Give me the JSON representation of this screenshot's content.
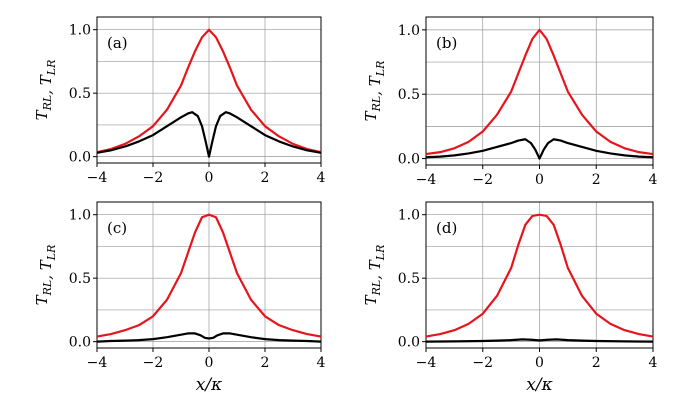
{
  "chart_data": [
    {
      "type": "line",
      "panel_label": "(a)",
      "ylabel": "T_{RL}, T_{LR}",
      "xlabel": "",
      "xlim": [
        -4,
        4
      ],
      "ylim": [
        -0.05,
        1.1
      ],
      "xticks": [
        -4,
        -2,
        0,
        2,
        4
      ],
      "xtick_labels": [
        "−4",
        "−2",
        "0",
        "2",
        "4"
      ],
      "yticks": [
        0.0,
        0.5,
        1.0
      ],
      "ytick_labels": [
        "0.0",
        "0.5",
        "1.0"
      ],
      "minor_y_grid": [
        0.25,
        0.75
      ],
      "grid": true,
      "series": [
        {
          "color": "#e8141c",
          "x": [
            -4,
            -3.5,
            -3,
            -2.5,
            -2,
            -1.5,
            -1,
            -0.75,
            -0.5,
            -0.25,
            0,
            0.25,
            0.5,
            0.75,
            1,
            1.5,
            2,
            2.5,
            3,
            3.5,
            4
          ],
          "values": [
            0.035,
            0.06,
            0.1,
            0.16,
            0.24,
            0.37,
            0.56,
            0.7,
            0.83,
            0.94,
            1.0,
            0.94,
            0.83,
            0.7,
            0.56,
            0.37,
            0.24,
            0.16,
            0.1,
            0.06,
            0.035
          ]
        },
        {
          "color": "#000000",
          "x": [
            -4,
            -3.5,
            -3,
            -2.5,
            -2,
            -1.5,
            -1,
            -0.75,
            -0.6,
            -0.4,
            -0.25,
            -0.12,
            0,
            0.12,
            0.25,
            0.4,
            0.6,
            0.75,
            1,
            1.5,
            2,
            2.5,
            3,
            3.5,
            4
          ],
          "values": [
            0.03,
            0.05,
            0.08,
            0.12,
            0.17,
            0.24,
            0.31,
            0.34,
            0.35,
            0.32,
            0.24,
            0.12,
            0.0,
            0.12,
            0.24,
            0.32,
            0.35,
            0.34,
            0.31,
            0.24,
            0.17,
            0.12,
            0.08,
            0.05,
            0.03
          ]
        }
      ]
    },
    {
      "type": "line",
      "panel_label": "(b)",
      "ylabel": "T_{RL}, T_{LR}",
      "xlabel": "",
      "xlim": [
        -4,
        4
      ],
      "ylim": [
        -0.05,
        1.1
      ],
      "xticks": [
        -4,
        -2,
        0,
        2,
        4
      ],
      "xtick_labels": [
        "−4",
        "−2",
        "0",
        "2",
        "4"
      ],
      "yticks": [
        0.0,
        0.5,
        1.0
      ],
      "ytick_labels": [
        "0.0",
        "0.5",
        "1.0"
      ],
      "minor_y_grid": [
        0.25,
        0.75
      ],
      "grid": true,
      "series": [
        {
          "color": "#e8141c",
          "x": [
            -4,
            -3.5,
            -3,
            -2.5,
            -2,
            -1.5,
            -1,
            -0.75,
            -0.5,
            -0.25,
            0,
            0.25,
            0.5,
            0.75,
            1,
            1.5,
            2,
            2.5,
            3,
            3.5,
            4
          ],
          "values": [
            0.035,
            0.05,
            0.08,
            0.13,
            0.21,
            0.34,
            0.52,
            0.66,
            0.8,
            0.93,
            1.0,
            0.93,
            0.8,
            0.66,
            0.52,
            0.34,
            0.21,
            0.13,
            0.08,
            0.05,
            0.035
          ]
        },
        {
          "color": "#000000",
          "x": [
            -4,
            -3.5,
            -3,
            -2.5,
            -2,
            -1.5,
            -1,
            -0.75,
            -0.5,
            -0.3,
            -0.15,
            0,
            0.15,
            0.3,
            0.5,
            0.75,
            1,
            1.5,
            2,
            2.5,
            3,
            3.5,
            4
          ],
          "values": [
            0.01,
            0.015,
            0.025,
            0.04,
            0.06,
            0.09,
            0.12,
            0.14,
            0.15,
            0.12,
            0.07,
            0.0,
            0.07,
            0.12,
            0.15,
            0.14,
            0.12,
            0.09,
            0.06,
            0.04,
            0.025,
            0.015,
            0.01
          ]
        }
      ]
    },
    {
      "type": "line",
      "panel_label": "(c)",
      "ylabel": "T_{RL}, T_{LR}",
      "xlabel": "x/κ",
      "xlim": [
        -4,
        4
      ],
      "ylim": [
        -0.05,
        1.1
      ],
      "xticks": [
        -4,
        -2,
        0,
        2,
        4
      ],
      "xtick_labels": [
        "−4",
        "−2",
        "0",
        "2",
        "4"
      ],
      "yticks": [
        0.0,
        0.5,
        1.0
      ],
      "ytick_labels": [
        "0.0",
        "0.5",
        "1.0"
      ],
      "minor_y_grid": [
        0.25,
        0.75
      ],
      "grid": true,
      "series": [
        {
          "color": "#e8141c",
          "x": [
            -4,
            -3.5,
            -3,
            -2.5,
            -2,
            -1.5,
            -1,
            -0.75,
            -0.5,
            -0.25,
            0,
            0.25,
            0.5,
            0.75,
            1,
            1.5,
            2,
            2.5,
            3,
            3.5,
            4
          ],
          "values": [
            0.04,
            0.06,
            0.09,
            0.13,
            0.2,
            0.33,
            0.54,
            0.7,
            0.86,
            0.98,
            1.0,
            0.98,
            0.86,
            0.7,
            0.54,
            0.33,
            0.2,
            0.13,
            0.09,
            0.06,
            0.04
          ]
        },
        {
          "color": "#000000",
          "x": [
            -4,
            -3.5,
            -3,
            -2.5,
            -2,
            -1.5,
            -1,
            -0.75,
            -0.5,
            -0.3,
            -0.15,
            0,
            0.15,
            0.3,
            0.5,
            0.75,
            1,
            1.5,
            2,
            2.5,
            3,
            3.5,
            4
          ],
          "values": [
            0.0,
            0.005,
            0.008,
            0.012,
            0.02,
            0.035,
            0.055,
            0.065,
            0.065,
            0.05,
            0.03,
            0.025,
            0.03,
            0.05,
            0.065,
            0.065,
            0.055,
            0.035,
            0.02,
            0.012,
            0.008,
            0.005,
            0.0
          ]
        }
      ]
    },
    {
      "type": "line",
      "panel_label": "(d)",
      "ylabel": "T_{RL}, T_{LR}",
      "xlabel": "x/κ",
      "xlim": [
        -4,
        4
      ],
      "ylim": [
        -0.05,
        1.1
      ],
      "xticks": [
        -4,
        -2,
        0,
        2,
        4
      ],
      "xtick_labels": [
        "−4",
        "−2",
        "0",
        "2",
        "4"
      ],
      "yticks": [
        0.0,
        0.5,
        1.0
      ],
      "ytick_labels": [
        "0.0",
        "0.5",
        "1.0"
      ],
      "minor_y_grid": [
        0.25,
        0.75
      ],
      "grid": true,
      "series": [
        {
          "color": "#e8141c",
          "x": [
            -4,
            -3.5,
            -3,
            -2.5,
            -2,
            -1.5,
            -1,
            -0.75,
            -0.5,
            -0.25,
            0,
            0.25,
            0.5,
            0.75,
            1,
            1.5,
            2,
            2.5,
            3,
            3.5,
            4
          ],
          "values": [
            0.04,
            0.06,
            0.09,
            0.14,
            0.22,
            0.36,
            0.58,
            0.76,
            0.92,
            0.99,
            1.0,
            0.99,
            0.92,
            0.76,
            0.58,
            0.36,
            0.22,
            0.14,
            0.09,
            0.06,
            0.04
          ]
        },
        {
          "color": "#000000",
          "x": [
            -4,
            -3,
            -2,
            -1.5,
            -1,
            -0.6,
            -0.3,
            0,
            0.3,
            0.6,
            1,
            1.5,
            2,
            3,
            4
          ],
          "values": [
            0.0,
            0.002,
            0.005,
            0.008,
            0.012,
            0.018,
            0.015,
            0.01,
            0.015,
            0.018,
            0.012,
            0.008,
            0.005,
            0.002,
            0.0
          ]
        }
      ]
    }
  ]
}
